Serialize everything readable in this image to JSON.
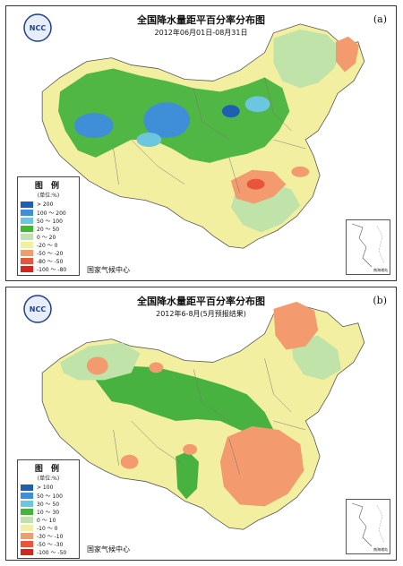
{
  "panels": [
    {
      "label": "(a)",
      "title": "全国降水量距平百分率分布图",
      "subtitle": "2012年06月01日-08月31日",
      "legend_title": "图 例",
      "legend_unit": "(单位:%)",
      "legend": [
        {
          "range": ">  200",
          "color": "#1f5fb3"
        },
        {
          "range": "100 ～ 200",
          "color": "#3f8ed8"
        },
        {
          "range": "50 ～ 100",
          "color": "#6cc6e0"
        },
        {
          "range": "20 ～ 50",
          "color": "#47b23f"
        },
        {
          "range": "0 ～ 20",
          "color": "#bfe3a8"
        },
        {
          "range": "-20 ～ 0",
          "color": "#f2f0a0"
        },
        {
          "range": "-50 ～ -20",
          "color": "#f39a6e"
        },
        {
          "range": "-80 ～ -50",
          "color": "#e8553d"
        },
        {
          "range": "-100 ～ -80",
          "color": "#d4261f"
        }
      ],
      "source": "国家气候中心",
      "inset_label": "南海诸岛",
      "logo_text": "NCC"
    },
    {
      "label": "(b)",
      "title": "全国降水量距平百分率分布图",
      "subtitle": "2012年6-8月(5月预报结果)",
      "legend_title": "图 例",
      "legend_unit": "(单位:%)",
      "legend": [
        {
          "range": ">  100",
          "color": "#1f5fb3"
        },
        {
          "range": "50 ～ 100",
          "color": "#3f8ed8"
        },
        {
          "range": "30 ～ 50",
          "color": "#6cc6e0"
        },
        {
          "range": "10 ～ 30",
          "color": "#47b23f"
        },
        {
          "range": "0 ～ 10",
          "color": "#bfe3a8"
        },
        {
          "range": "-10 ～ 0",
          "color": "#f2f0a0"
        },
        {
          "range": "-30 ～ -10",
          "color": "#f39a6e"
        },
        {
          "range": "-50 ～ -30",
          "color": "#e8553d"
        },
        {
          "range": "-100 ～ -50",
          "color": "#d4261f"
        }
      ],
      "source": "国家气候中心",
      "inset_label": "南海诸岛",
      "logo_text": "NCC"
    }
  ]
}
